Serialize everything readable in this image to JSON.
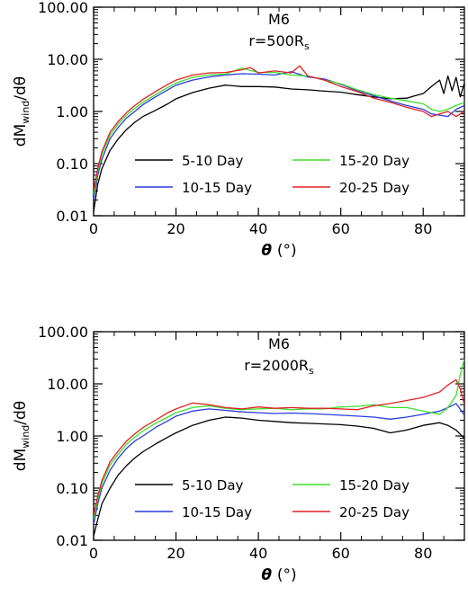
{
  "chart_data": [
    {
      "type": "line",
      "title": "M6",
      "subtitle": {
        "prefix": "r=500R",
        "sub": "s"
      },
      "xlabel": {
        "symbol": "θ",
        "unit": "(°)"
      },
      "ylabel": {
        "prefix": "dM",
        "sub": "wind",
        "suffix": "/dθ"
      },
      "yscale": "log",
      "xlim": [
        0,
        90
      ],
      "ylim": [
        0.01,
        100
      ],
      "xticks": [
        0,
        20,
        40,
        60,
        80
      ],
      "yticks": [
        0.01,
        0.1,
        1,
        10,
        100
      ],
      "ytick_labels": [
        "0.01",
        "0.10",
        "1.00",
        "10.00",
        "100.00"
      ],
      "legend": "bottom-center",
      "series": [
        {
          "name": "5-10 Day",
          "color": "#000000",
          "x": [
            0,
            1,
            2,
            4,
            6,
            8,
            10,
            12,
            15,
            18,
            20,
            24,
            28,
            32,
            34,
            36,
            40,
            44,
            48,
            52,
            56,
            60,
            64,
            68,
            72,
            76,
            78,
            80,
            82,
            84,
            85,
            86,
            87,
            88,
            89,
            90
          ],
          "y": [
            0.012,
            0.04,
            0.08,
            0.18,
            0.3,
            0.45,
            0.62,
            0.8,
            1.05,
            1.4,
            1.75,
            2.3,
            2.8,
            3.2,
            3.1,
            3.0,
            3.0,
            2.95,
            2.7,
            2.6,
            2.45,
            2.35,
            2.1,
            1.9,
            1.75,
            1.8,
            2.0,
            2.2,
            3.0,
            4.0,
            2.2,
            4.8,
            2.5,
            4.5,
            1.9,
            3.5
          ]
        },
        {
          "name": "10-15 Day",
          "color": "#2a3cdc",
          "x": [
            0,
            1,
            2,
            4,
            6,
            8,
            10,
            12,
            15,
            18,
            20,
            24,
            28,
            32,
            36,
            40,
            44,
            48,
            52,
            56,
            60,
            64,
            68,
            72,
            76,
            80,
            82,
            84,
            86,
            88,
            90
          ],
          "y": [
            0.02,
            0.06,
            0.12,
            0.3,
            0.5,
            0.75,
            1.0,
            1.35,
            1.9,
            2.6,
            3.2,
            4.0,
            4.6,
            5.0,
            5.3,
            5.2,
            5.0,
            5.8,
            4.6,
            4.2,
            3.3,
            2.5,
            2.0,
            1.6,
            1.3,
            1.1,
            0.9,
            0.85,
            0.8,
            1.1,
            1.3
          ]
        },
        {
          "name": "15-20 Day",
          "color": "#3dde2a",
          "x": [
            0,
            1,
            2,
            4,
            6,
            8,
            10,
            12,
            15,
            18,
            20,
            24,
            28,
            32,
            36,
            40,
            44,
            48,
            52,
            56,
            60,
            64,
            68,
            72,
            76,
            80,
            82,
            84,
            86,
            88,
            90
          ],
          "y": [
            0.025,
            0.07,
            0.15,
            0.35,
            0.58,
            0.85,
            1.15,
            1.5,
            2.1,
            2.9,
            3.5,
            4.5,
            5.0,
            5.2,
            6.8,
            5.6,
            5.6,
            5.0,
            4.8,
            4.0,
            3.4,
            2.6,
            2.1,
            1.8,
            1.6,
            1.4,
            1.1,
            1.0,
            1.1,
            1.3,
            1.5
          ]
        },
        {
          "name": "20-25 Day",
          "color": "#e02020",
          "x": [
            0,
            1,
            2,
            4,
            6,
            8,
            10,
            12,
            15,
            18,
            20,
            24,
            28,
            32,
            36,
            38,
            40,
            44,
            48,
            50,
            52,
            56,
            60,
            64,
            68,
            72,
            76,
            80,
            82,
            84,
            86,
            88,
            90
          ],
          "y": [
            0.03,
            0.08,
            0.17,
            0.4,
            0.65,
            0.95,
            1.3,
            1.7,
            2.4,
            3.3,
            4.0,
            5.0,
            5.5,
            5.6,
            6.3,
            7.0,
            5.5,
            6.0,
            5.5,
            7.5,
            4.8,
            4.0,
            3.0,
            2.4,
            1.8,
            1.5,
            1.2,
            1.0,
            0.8,
            0.9,
            1.0,
            0.8,
            1.0
          ]
        }
      ]
    },
    {
      "type": "line",
      "title": "M6",
      "subtitle": {
        "prefix": "r=2000R",
        "sub": "s"
      },
      "xlabel": {
        "symbol": "θ",
        "unit": "(°)"
      },
      "ylabel": {
        "prefix": "dM",
        "sub": "wind",
        "suffix": "/dθ"
      },
      "yscale": "log",
      "xlim": [
        0,
        90
      ],
      "ylim": [
        0.01,
        100
      ],
      "xticks": [
        0,
        20,
        40,
        60,
        80
      ],
      "yticks": [
        0.01,
        0.1,
        1,
        10,
        100
      ],
      "ytick_labels": [
        "0.01",
        "0.10",
        "1.00",
        "10.00",
        "100.00"
      ],
      "legend": "bottom-center",
      "series": [
        {
          "name": "5-10 Day",
          "color": "#000000",
          "x": [
            0,
            1,
            2,
            4,
            6,
            8,
            10,
            12,
            15,
            18,
            20,
            24,
            28,
            32,
            36,
            40,
            44,
            48,
            52,
            56,
            60,
            64,
            68,
            72,
            76,
            80,
            84,
            86,
            88,
            90
          ],
          "y": [
            0.012,
            0.025,
            0.05,
            0.1,
            0.18,
            0.27,
            0.38,
            0.5,
            0.7,
            0.95,
            1.15,
            1.6,
            2.0,
            2.3,
            2.2,
            2.0,
            1.9,
            1.8,
            1.75,
            1.7,
            1.65,
            1.55,
            1.4,
            1.15,
            1.3,
            1.6,
            1.8,
            1.6,
            1.3,
            0.9
          ]
        },
        {
          "name": "10-15 Day",
          "color": "#2a3cdc",
          "x": [
            0,
            1,
            2,
            4,
            6,
            8,
            10,
            12,
            15,
            18,
            20,
            24,
            28,
            32,
            36,
            40,
            44,
            48,
            52,
            56,
            60,
            64,
            68,
            72,
            76,
            80,
            84,
            86,
            88,
            90
          ],
          "y": [
            0.02,
            0.05,
            0.1,
            0.22,
            0.38,
            0.58,
            0.8,
            1.0,
            1.45,
            1.95,
            2.4,
            3.0,
            3.3,
            3.1,
            2.9,
            2.8,
            2.7,
            2.75,
            2.7,
            2.6,
            2.5,
            2.4,
            2.3,
            2.1,
            2.3,
            2.6,
            3.0,
            3.5,
            4.2,
            2.5
          ]
        },
        {
          "name": "15-20 Day",
          "color": "#3dde2a",
          "x": [
            0,
            1,
            2,
            4,
            6,
            8,
            10,
            12,
            15,
            18,
            20,
            24,
            28,
            32,
            36,
            40,
            44,
            48,
            52,
            56,
            60,
            64,
            68,
            72,
            76,
            80,
            84,
            86,
            88,
            89,
            90
          ],
          "y": [
            0.025,
            0.06,
            0.12,
            0.28,
            0.45,
            0.7,
            0.95,
            1.25,
            1.75,
            2.3,
            2.8,
            3.5,
            3.8,
            3.4,
            3.2,
            3.3,
            3.4,
            3.2,
            3.3,
            3.3,
            3.6,
            3.7,
            4.0,
            3.5,
            3.5,
            3.0,
            2.6,
            3.5,
            6.0,
            15.0,
            30.0
          ]
        },
        {
          "name": "20-25 Day",
          "color": "#e02020",
          "x": [
            0,
            1,
            2,
            4,
            6,
            8,
            10,
            12,
            15,
            18,
            20,
            24,
            28,
            32,
            36,
            40,
            44,
            48,
            52,
            56,
            60,
            64,
            68,
            72,
            76,
            80,
            84,
            86,
            88,
            89,
            90
          ],
          "y": [
            0.03,
            0.07,
            0.14,
            0.32,
            0.52,
            0.8,
            1.1,
            1.45,
            2.0,
            2.8,
            3.3,
            4.3,
            4.0,
            3.5,
            3.3,
            3.6,
            3.4,
            3.5,
            3.4,
            3.4,
            3.3,
            3.2,
            3.8,
            4.2,
            4.8,
            5.5,
            7.0,
            9.5,
            12.0,
            8.0,
            4.0
          ]
        }
      ]
    }
  ]
}
